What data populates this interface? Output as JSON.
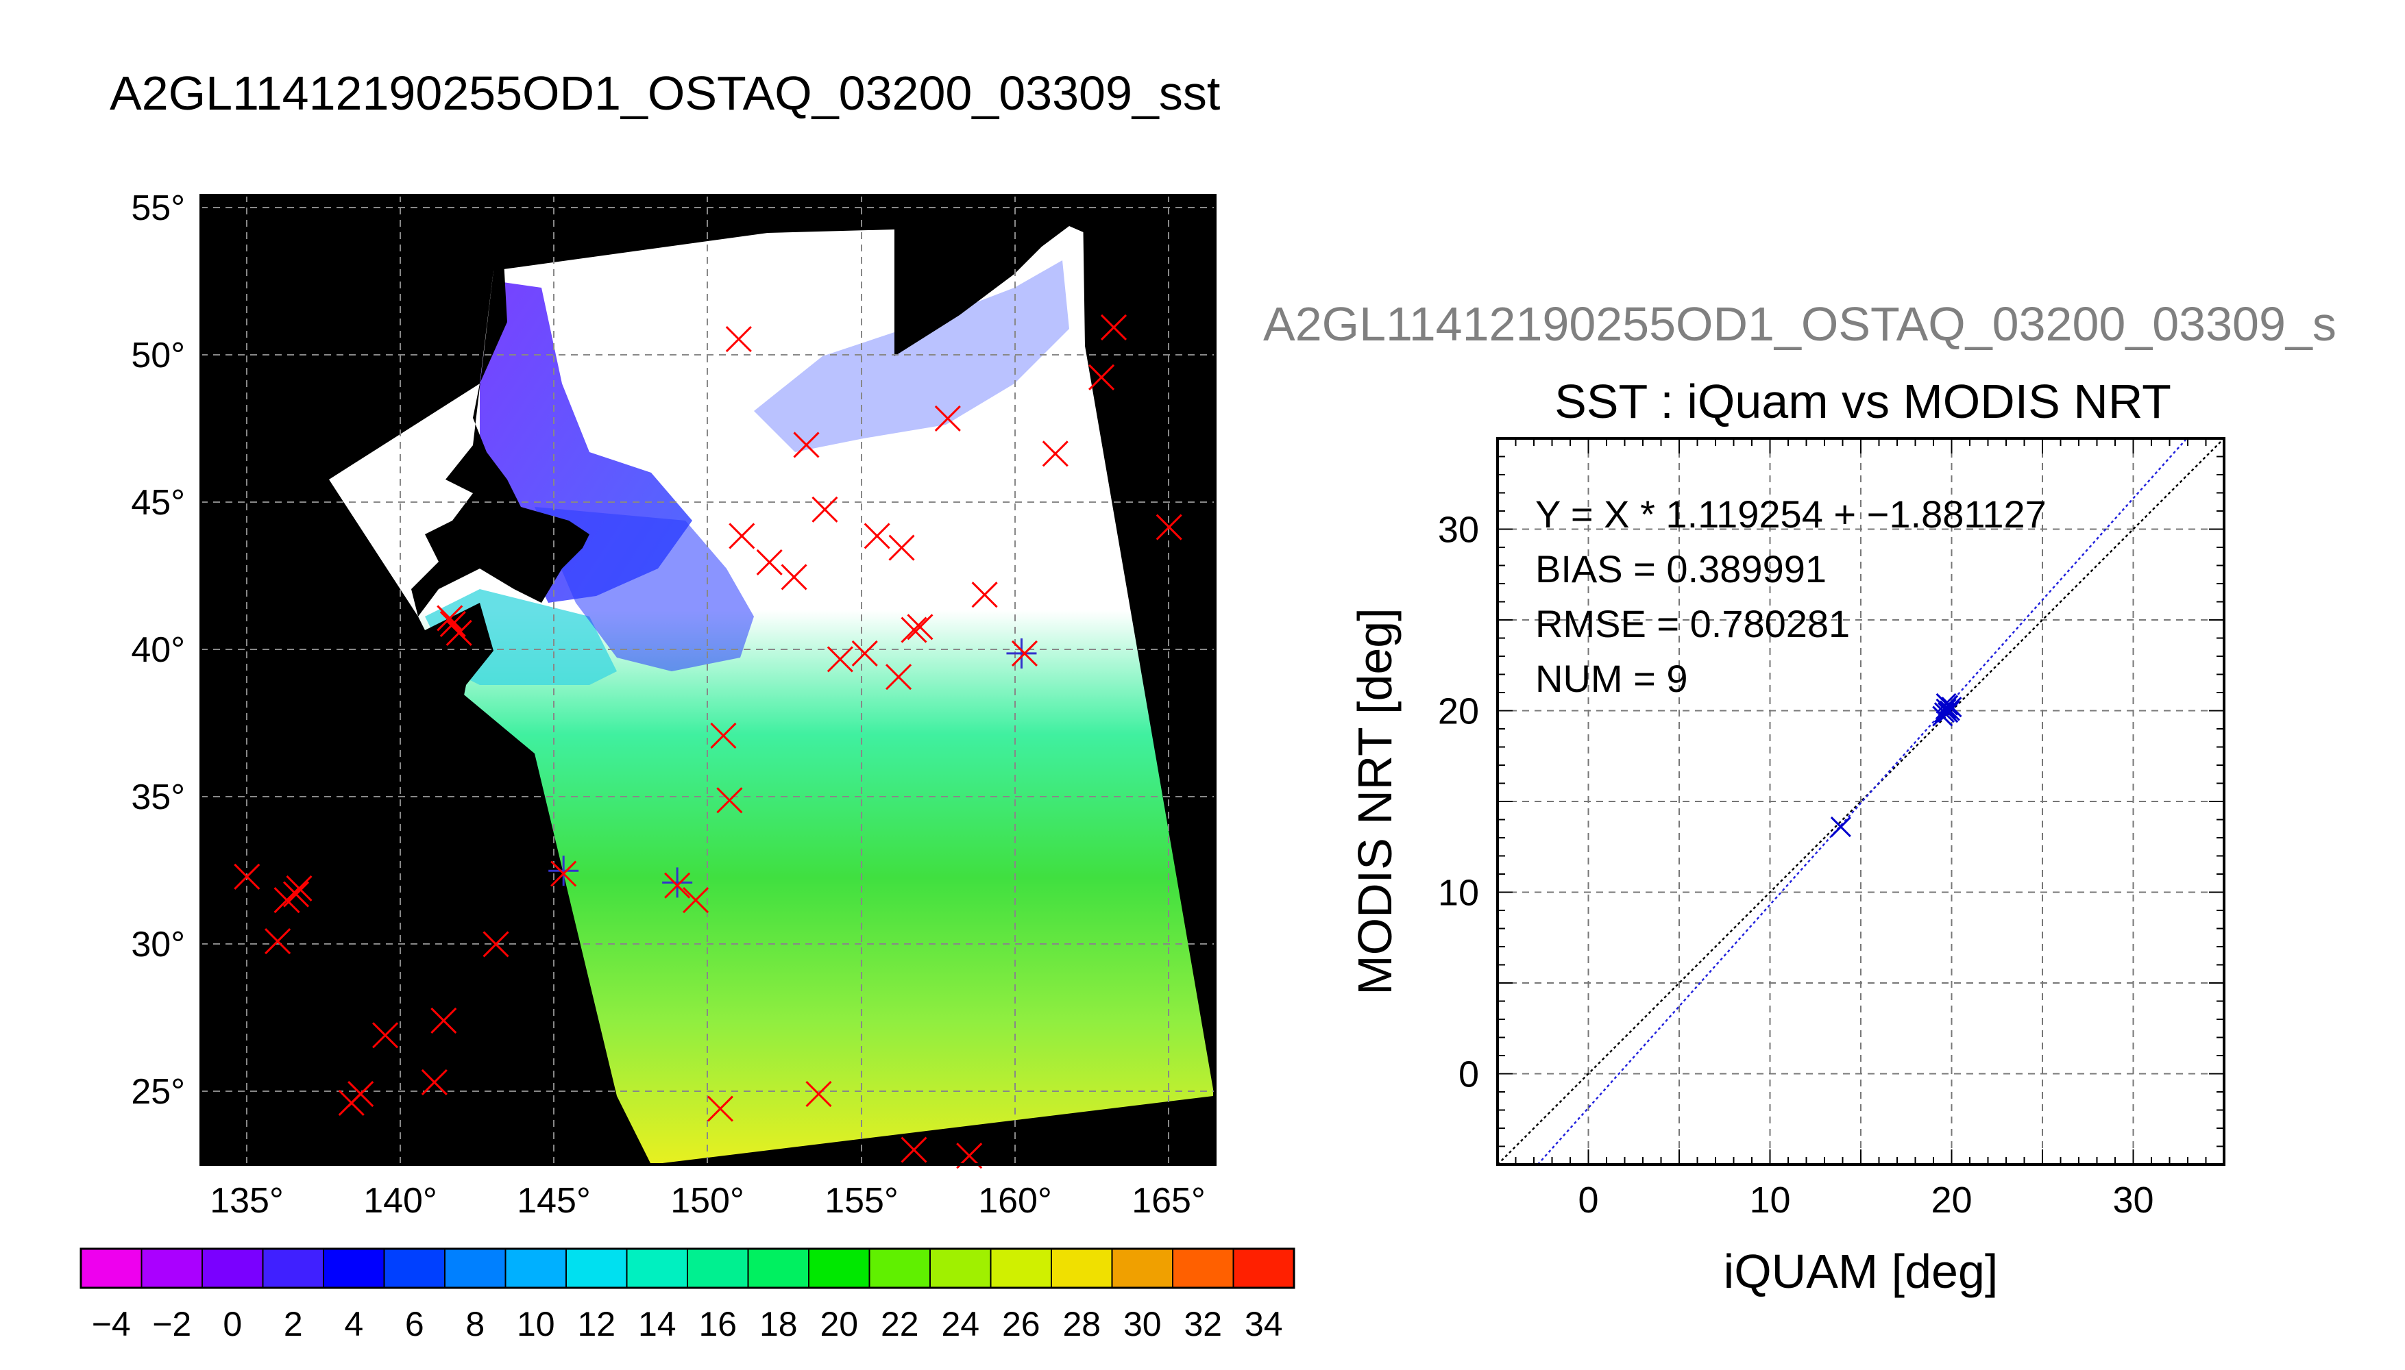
{
  "page_title": "A2GL11412190255OD1_OSTAQ_03200_03309_sst",
  "map": {
    "lat_labels": [
      "55°",
      "50°",
      "45°",
      "40°",
      "35°",
      "30°",
      "25°"
    ],
    "lon_labels": [
      "135°",
      "140°",
      "145°",
      "150°",
      "155°",
      "160°",
      "165°"
    ],
    "colorbar_labels": [
      "−4",
      "−2",
      "0",
      "2",
      "4",
      "6",
      "8",
      "10",
      "12",
      "14",
      "16",
      "18",
      "20",
      "22",
      "24",
      "26",
      "28",
      "30",
      "32",
      "34"
    ]
  },
  "scatter_overflow_title": "A2GL11412190255OD1_OSTAQ_03200_03309_s",
  "chart_data": [
    {
      "type": "map",
      "title": "A2GL11412190255OD1_OSTAQ_03200_03309_sst",
      "xlim": [
        133.5,
        166.5
      ],
      "ylim": [
        22.5,
        55.5
      ],
      "lat_ticks": [
        55,
        50,
        45,
        40,
        35,
        30,
        25
      ],
      "lon_ticks": [
        135,
        140,
        145,
        150,
        155,
        160,
        165
      ],
      "grid": true,
      "colorbar": {
        "min": -5,
        "max": 35,
        "bins": 20,
        "tick_labels": [
          -4,
          -2,
          0,
          2,
          4,
          6,
          8,
          10,
          12,
          14,
          16,
          18,
          20,
          22,
          24,
          26,
          28,
          30,
          32,
          34
        ]
      },
      "colors": {
        "background": "#000000",
        "grid": "#888888",
        "marker_red": "#ff0000",
        "marker_blue": "#3333cc"
      },
      "buoys_red": [
        {
          "lon": 151.0,
          "lat": 50.6
        },
        {
          "lon": 163.2,
          "lat": 51.0
        },
        {
          "lon": 162.8,
          "lat": 49.3
        },
        {
          "lon": 157.8,
          "lat": 47.9
        },
        {
          "lon": 161.3,
          "lat": 46.7
        },
        {
          "lon": 153.2,
          "lat": 47.0
        },
        {
          "lon": 153.8,
          "lat": 44.8
        },
        {
          "lon": 165.0,
          "lat": 44.2
        },
        {
          "lon": 151.1,
          "lat": 43.9
        },
        {
          "lon": 155.5,
          "lat": 43.9
        },
        {
          "lon": 156.3,
          "lat": 43.5
        },
        {
          "lon": 152.0,
          "lat": 43.0
        },
        {
          "lon": 152.8,
          "lat": 42.5
        },
        {
          "lon": 159.0,
          "lat": 41.9
        },
        {
          "lon": 141.6,
          "lat": 41.1
        },
        {
          "lon": 141.9,
          "lat": 40.6
        },
        {
          "lon": 141.7,
          "lat": 40.9
        },
        {
          "lon": 156.9,
          "lat": 40.8
        },
        {
          "lon": 156.7,
          "lat": 40.7
        },
        {
          "lon": 154.3,
          "lat": 39.7
        },
        {
          "lon": 155.1,
          "lat": 39.9
        },
        {
          "lon": 156.2,
          "lat": 39.1
        },
        {
          "lon": 160.3,
          "lat": 39.9
        },
        {
          "lon": 150.5,
          "lat": 37.1
        },
        {
          "lon": 150.7,
          "lat": 34.9
        },
        {
          "lon": 135.0,
          "lat": 32.3
        },
        {
          "lon": 136.7,
          "lat": 31.9
        },
        {
          "lon": 136.3,
          "lat": 31.5
        },
        {
          "lon": 136.6,
          "lat": 31.7
        },
        {
          "lon": 145.3,
          "lat": 32.4
        },
        {
          "lon": 149.0,
          "lat": 32.0
        },
        {
          "lon": 149.6,
          "lat": 31.5
        },
        {
          "lon": 136.0,
          "lat": 30.1
        },
        {
          "lon": 143.1,
          "lat": 30.0
        },
        {
          "lon": 141.4,
          "lat": 27.4
        },
        {
          "lon": 139.5,
          "lat": 26.9
        },
        {
          "lon": 141.1,
          "lat": 25.3
        },
        {
          "lon": 138.7,
          "lat": 24.9
        },
        {
          "lon": 138.4,
          "lat": 24.6
        },
        {
          "lon": 150.4,
          "lat": 24.4
        },
        {
          "lon": 153.6,
          "lat": 24.9
        },
        {
          "lon": 156.7,
          "lat": 23.0
        },
        {
          "lon": 158.5,
          "lat": 22.8
        }
      ],
      "buoys_blue": [
        {
          "lon": 145.3,
          "lat": 32.5
        },
        {
          "lon": 149.0,
          "lat": 32.1
        },
        {
          "lon": 160.2,
          "lat": 39.9
        }
      ]
    },
    {
      "type": "scatter",
      "title": "SST : iQuam vs MODIS NRT",
      "xlabel": "iQUAM [deg]",
      "ylabel": "MODIS NRT [deg]",
      "xlim": [
        -5,
        35
      ],
      "ylim": [
        -5,
        35
      ],
      "xticks": [
        0,
        10,
        20,
        30
      ],
      "yticks": [
        0,
        10,
        20,
        30
      ],
      "grid": true,
      "annotations": [
        "Y = X * 1.119254 + −1.881127",
        "BIAS = 0.389991",
        "RMSE = 0.780281",
        "NUM = 9"
      ],
      "fit": {
        "slope": 1.119254,
        "intercept": -1.881127,
        "color": "#2222dd"
      },
      "identity_line": {
        "color": "#000000"
      },
      "points": [
        {
          "x": 13.9,
          "y": 13.6
        },
        {
          "x": 19.6,
          "y": 19.9
        },
        {
          "x": 19.7,
          "y": 20.1
        },
        {
          "x": 19.8,
          "y": 20.3
        },
        {
          "x": 19.9,
          "y": 20.0
        },
        {
          "x": 19.5,
          "y": 19.7
        },
        {
          "x": 19.8,
          "y": 19.9
        },
        {
          "x": 20.0,
          "y": 20.2
        },
        {
          "x": 19.7,
          "y": 20.4
        }
      ],
      "marker_color": "#0000cc"
    }
  ]
}
